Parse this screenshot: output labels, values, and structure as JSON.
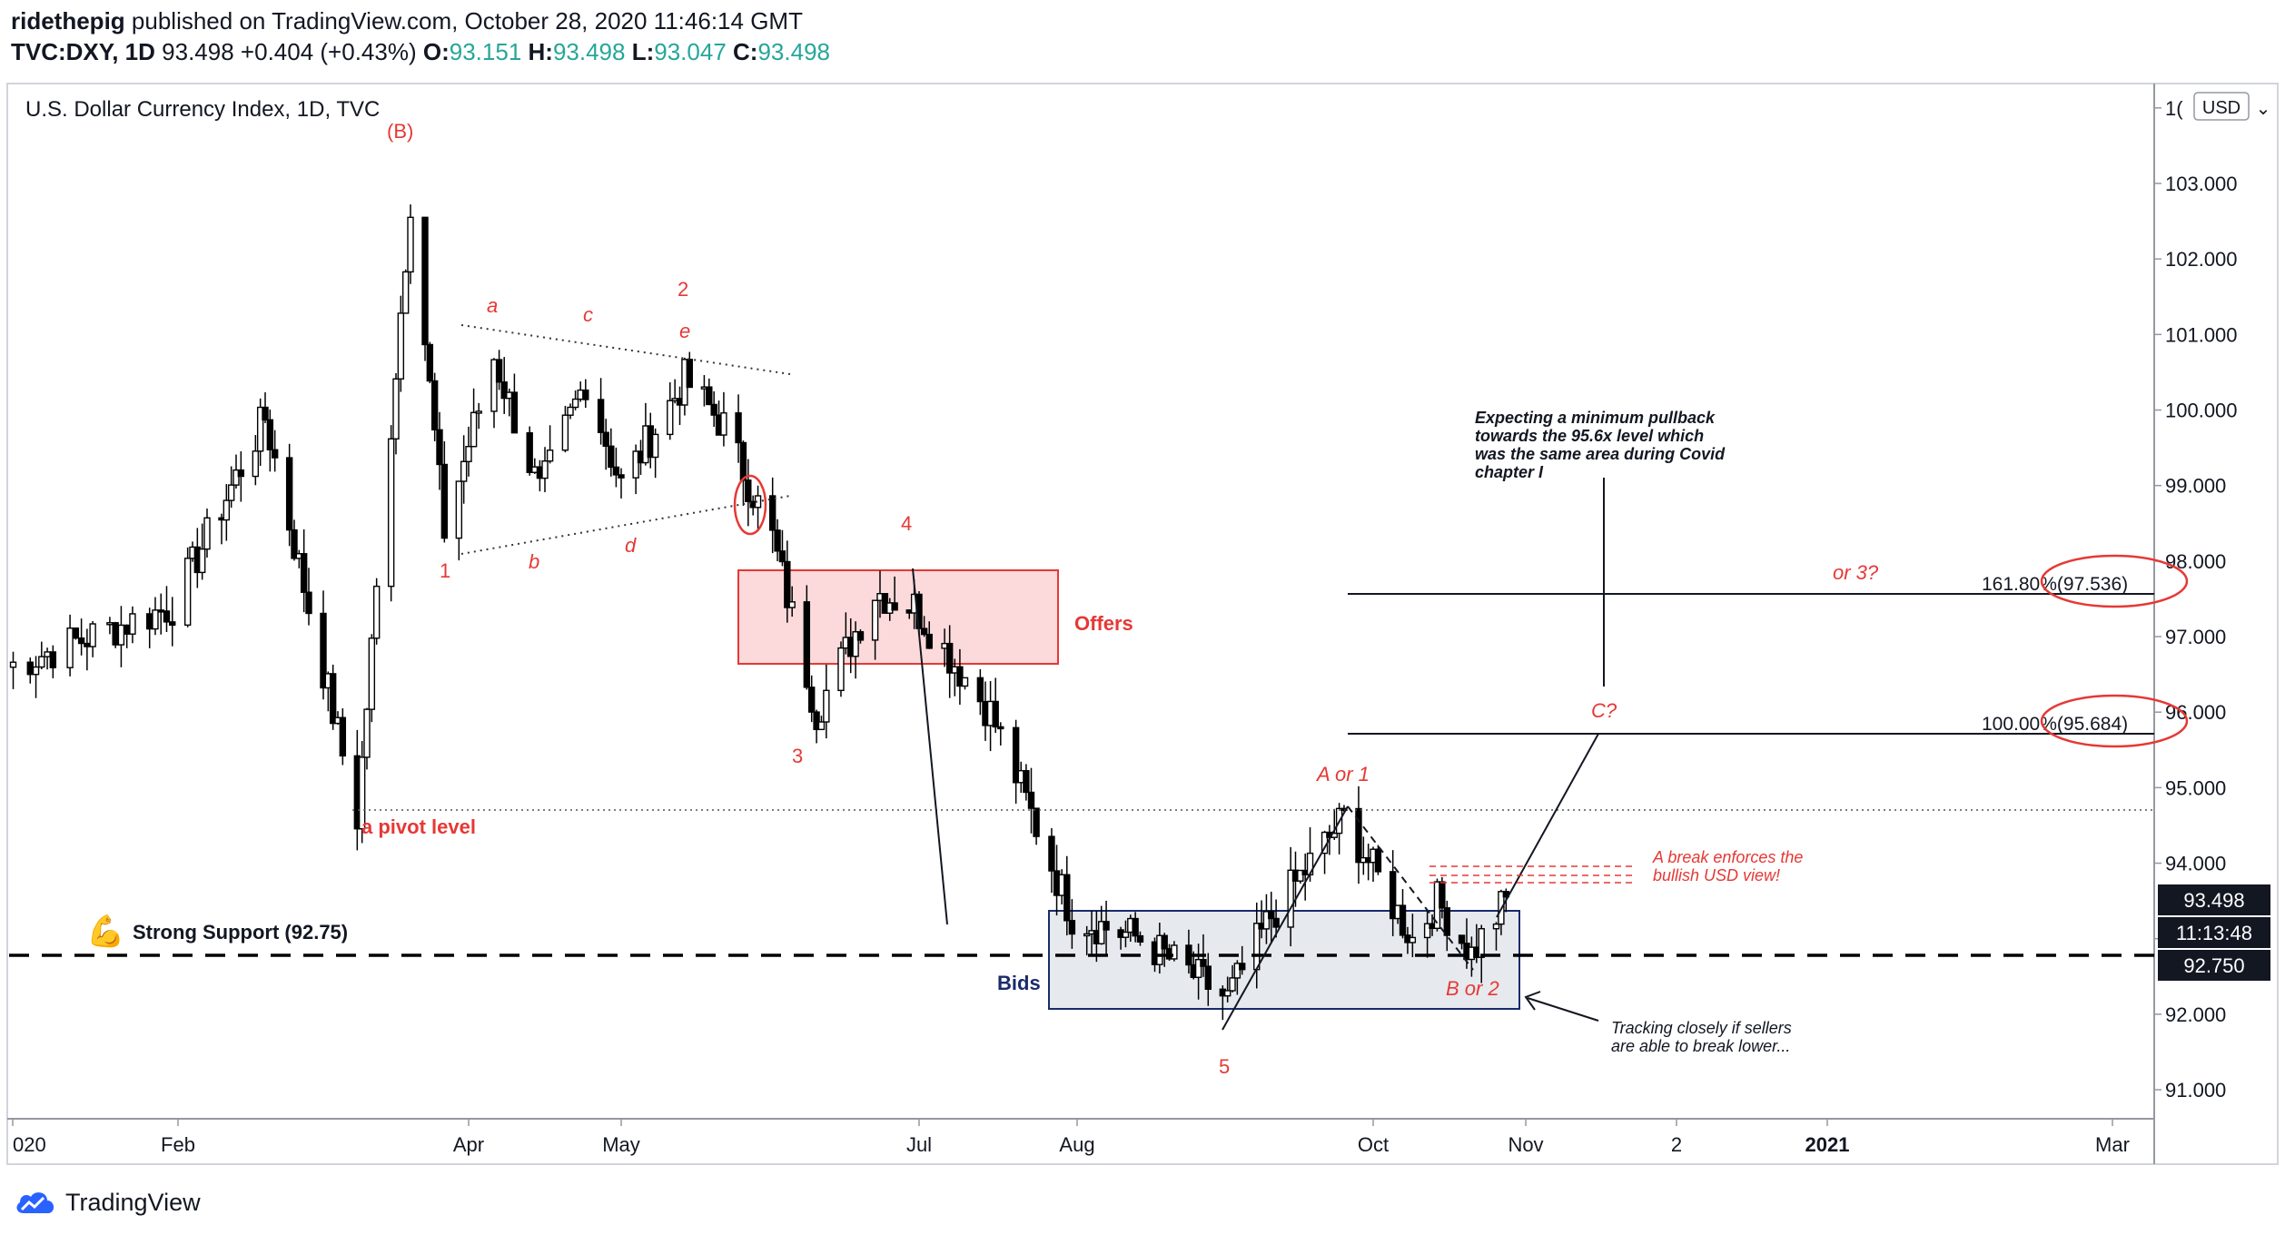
{
  "header": {
    "author": "ridethepig",
    "published_text": "published on TradingView.com, October 28, 2020 11:46:14 GMT",
    "symbol": "TVC:DXY, 1D",
    "last": "93.498",
    "change": "+0.404 (+0.43%)",
    "o_label": "O:",
    "o_val": "93.151",
    "h_label": "H:",
    "h_val": "93.498",
    "l_label": "L:",
    "l_val": "93.047",
    "c_label": "C:",
    "c_val": "93.498"
  },
  "footer": {
    "brand": "TradingView"
  },
  "chart_data": {
    "type": "candlestick",
    "title": "U.S. Dollar Currency Index, 1D, TVC",
    "currency": "USD",
    "ylim": [
      90.4,
      104.0
    ],
    "y_ticks": [
      "91.000",
      "92.000",
      "93.000",
      "94.000",
      "95.000",
      "96.000",
      "97.000",
      "98.000",
      "99.000",
      "100.000",
      "101.000",
      "102.000",
      "103.000",
      "1("
    ],
    "x_ticks": [
      "020",
      "Feb",
      "Apr",
      "May",
      "Jul",
      "Aug",
      "Oct",
      "Nov",
      "2",
      "2021",
      "Mar"
    ],
    "price_labels": {
      "last_price": "93.498",
      "countdown": "11:13:48",
      "support_price": "92.750"
    },
    "key_points": [
      {
        "date": "2020-01-02",
        "close": 96.6
      },
      {
        "date": "2020-01-31",
        "close": 97.4
      },
      {
        "date": "2020-02-19",
        "close": 99.9
      },
      {
        "date": "2020-03-09",
        "close": 94.6
      },
      {
        "date": "2020-03-20",
        "close": 102.8
      },
      {
        "date": "2020-03-27",
        "close": 98.4
      },
      {
        "date": "2020-04-06",
        "close": 100.7
      },
      {
        "date": "2020-04-15",
        "close": 98.9
      },
      {
        "date": "2020-04-24",
        "close": 100.4
      },
      {
        "date": "2020-05-01",
        "close": 99.0
      },
      {
        "date": "2020-05-14",
        "close": 100.4
      },
      {
        "date": "2020-05-22",
        "close": 99.8
      },
      {
        "date": "2020-06-01",
        "close": 98.3
      },
      {
        "date": "2020-06-10",
        "close": 96.0
      },
      {
        "date": "2020-06-22",
        "close": 97.6
      },
      {
        "date": "2020-06-30",
        "close": 97.4
      },
      {
        "date": "2020-07-15",
        "close": 96.0
      },
      {
        "date": "2020-07-31",
        "close": 93.3
      },
      {
        "date": "2020-08-14",
        "close": 93.0
      },
      {
        "date": "2020-09-01",
        "close": 92.2
      },
      {
        "date": "2020-09-10",
        "close": 93.3
      },
      {
        "date": "2020-09-25",
        "close": 94.6
      },
      {
        "date": "2020-10-09",
        "close": 93.0
      },
      {
        "date": "2020-10-14",
        "close": 93.5
      },
      {
        "date": "2020-10-21",
        "close": 92.8
      },
      {
        "date": "2020-10-28",
        "close": 93.5
      }
    ],
    "horizontal_levels": [
      {
        "label": "Strong Support (92.75)",
        "value": 92.75
      },
      {
        "label": "a pivot level",
        "value": 94.65
      },
      {
        "label": "161.80%(97.536)",
        "value": 97.536
      },
      {
        "label": "100.00%(95.684)",
        "value": 95.684
      }
    ],
    "zones": [
      {
        "label": "Offers",
        "from": 96.6,
        "to": 97.85
      },
      {
        "label": "Bids",
        "from": 92.0,
        "to": 93.3
      }
    ],
    "wave_labels": [
      "(B)",
      "2",
      "4",
      "1",
      "3",
      "5",
      "a",
      "b",
      "c",
      "d",
      "e",
      "A or 1",
      "B or 2",
      "C?",
      "or 3?"
    ],
    "annotations": {
      "support_emoji": "💪",
      "support": "Strong Support (92.75)",
      "pivot": "a pivot level",
      "offers": "Offers",
      "bids": "Bids",
      "fib_1618": "161.80%(97.536)",
      "fib_100": "100.00%(95.684)",
      "expect": [
        "Expecting a minimum pullback",
        "towards the 95.6x level which",
        "was the same area during Covid",
        "chapter I"
      ],
      "break": [
        "A break enforces the",
        "bullish USD view!"
      ],
      "tracking": [
        "Tracking closely if sellers",
        "are able to break lower..."
      ]
    },
    "colors": {
      "up": "#26a69a",
      "down": "#ef5350",
      "candle": "#000000",
      "annotation_red": "#e53935",
      "offers_fill": "#fbd3d5",
      "bids_fill": "#e4e7ed",
      "bids_text": "#1a2b6b"
    }
  }
}
